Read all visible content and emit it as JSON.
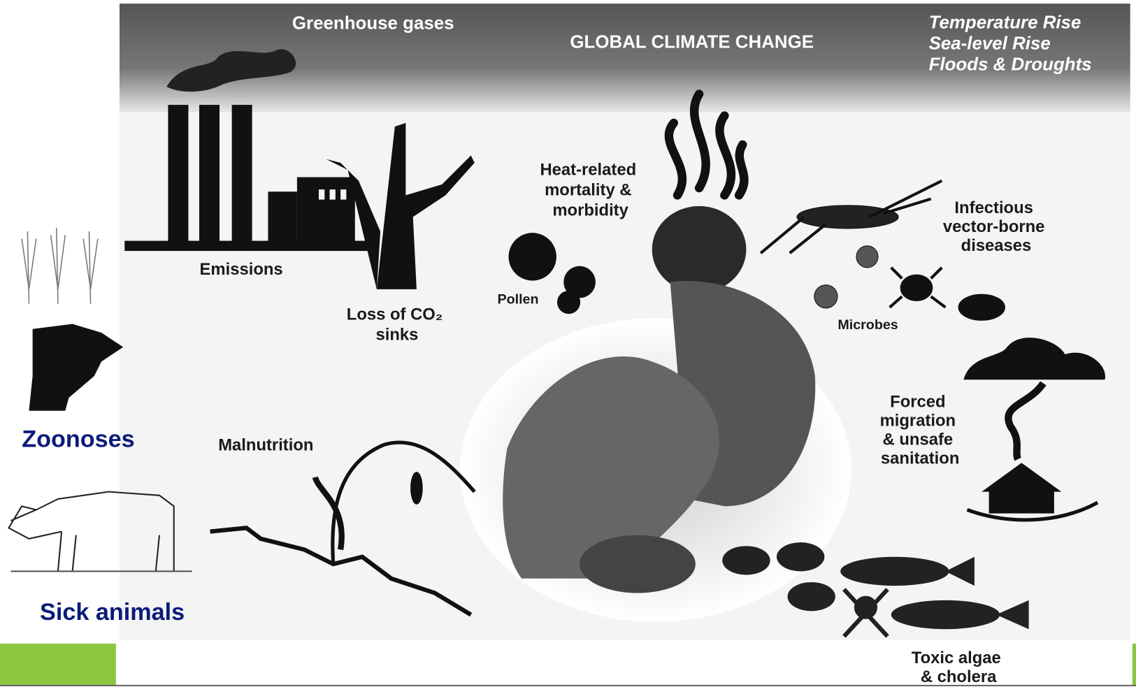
{
  "header": {
    "left": "Greenhouse gases",
    "title": "GLOBAL CLIMATE CHANGE",
    "right": [
      "Temperature Rise",
      "Sea-level Rise",
      "Floods & Droughts"
    ]
  },
  "labels": {
    "emissions": "Emissions",
    "co2_sinks": [
      "Loss of CO₂",
      "sinks"
    ],
    "heat": [
      "Heat-related",
      "mortality &",
      "morbidity"
    ],
    "pollen": "Pollen",
    "microbes": "Microbes",
    "vector": [
      "Infectious",
      "vector-borne",
      "diseases"
    ],
    "migration": [
      "Forced",
      "migration",
      "& unsafe",
      "sanitation"
    ],
    "malnutrition": "Malnutrition",
    "algae": [
      "Toxic algae",
      "& cholera"
    ]
  },
  "sidebar": {
    "zoonoses": "Zoonoses",
    "sick_animals": "Sick animals"
  }
}
